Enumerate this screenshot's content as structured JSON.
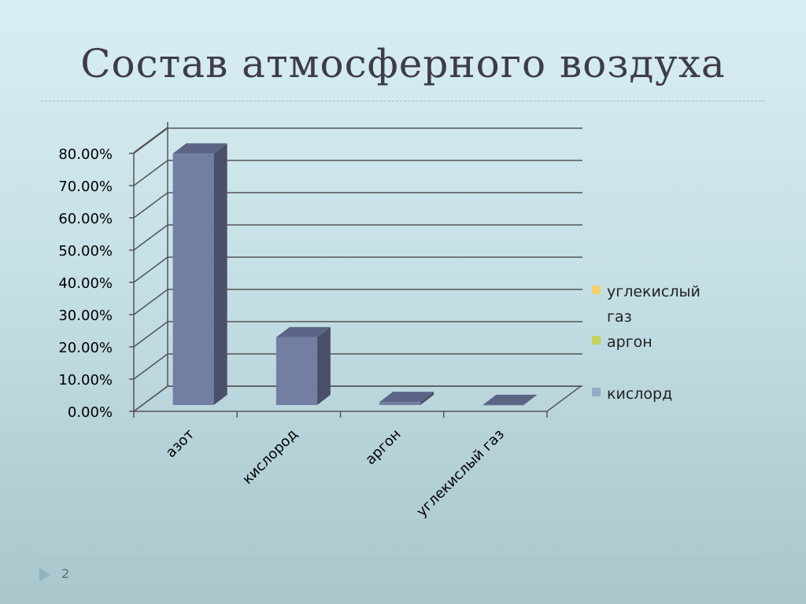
{
  "slide": {
    "title": "Состав атмосферного воздуха",
    "number": "2"
  },
  "colors": {
    "bar_front": "#737ea3",
    "bar_side": "#4a5068",
    "bar_top": "#5c6585",
    "grid": "#555555",
    "text": "#000000"
  },
  "legend": [
    {
      "label": "углекислый газ",
      "color": "#f4d06b"
    },
    {
      "label": "аргон",
      "color": "#c8d25a"
    },
    {
      "label": "кислорд",
      "color": "#9aaac2"
    }
  ],
  "chart_data": {
    "type": "bar",
    "categories": [
      "азот",
      "кислород",
      "аргон",
      "углекислый газ"
    ],
    "values": [
      0.78,
      0.21,
      0.0093,
      0.0004
    ],
    "tick_labels": [
      "0.00%",
      "10.00%",
      "20.00%",
      "30.00%",
      "40.00%",
      "50.00%",
      "60.00%",
      "70.00%",
      "80.00%"
    ],
    "ylim": [
      0,
      0.8
    ],
    "title": "",
    "xlabel": "",
    "ylabel": "",
    "grid": true,
    "legend_position": "right",
    "projection": "3d"
  }
}
